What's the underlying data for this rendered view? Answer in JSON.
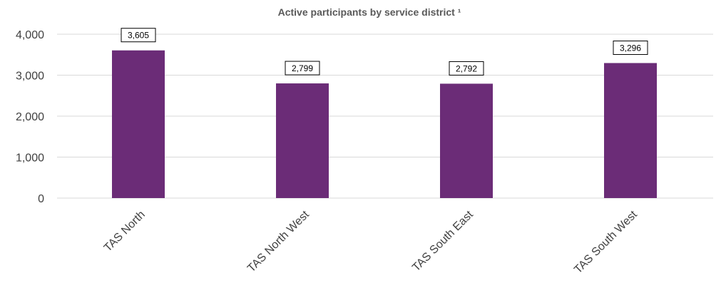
{
  "chart_data": {
    "type": "bar",
    "title": "Active participants by service district ¹",
    "categories": [
      "TAS North",
      "TAS North West",
      "TAS South East",
      "TAS South West"
    ],
    "values": [
      3605,
      2799,
      2792,
      3296
    ],
    "data_labels": [
      "3,605",
      "2,799",
      "2,792",
      "3,296"
    ],
    "ylim": [
      0,
      4000
    ],
    "yticks": [
      0,
      1000,
      2000,
      3000,
      4000
    ],
    "ytick_labels": [
      "0",
      "1,000",
      "2,000",
      "3,000",
      "4,000"
    ],
    "xlabel": "",
    "ylabel": "",
    "grid": true,
    "legend": "none",
    "bar_color": "#6B2C77",
    "grid_color": "#D9D9D9"
  }
}
